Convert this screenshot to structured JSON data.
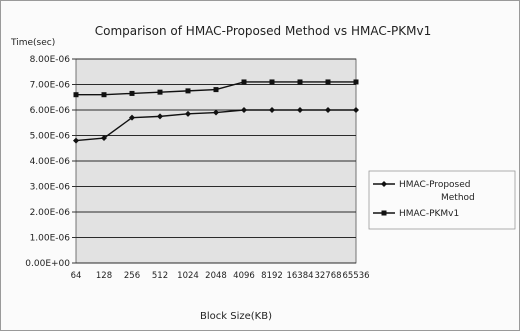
{
  "chart_data": {
    "type": "line",
    "title": "Comparison of HMAC-Proposed Method vs HMAC-PKMv1",
    "ylabel": "Time(sec)",
    "xlabel": "Block Size(KB)",
    "categories": [
      "64",
      "128",
      "256",
      "512",
      "1024",
      "2048",
      "4096",
      "8192",
      "16384",
      "32768",
      "65536"
    ],
    "category_labels": [
      "64",
      "128",
      "256",
      "512",
      "1024",
      "2048",
      "4096",
      "8192",
      "16384",
      "32768",
      "65536"
    ],
    "y_ticks": [
      "0.00E+00",
      "1.00E-06",
      "2.00E-06",
      "3.00E-06",
      "4.00E-06",
      "5.00E-06",
      "6.00E-06",
      "7.00E-06",
      "8.00E-06"
    ],
    "ylim": [
      0,
      8e-06
    ],
    "grid": true,
    "legend_position": "right",
    "series": [
      {
        "name": "HMAC-Proposed Method",
        "marker": "diamond",
        "values": [
          4.8e-06,
          4.9e-06,
          5.7e-06,
          5.75e-06,
          5.85e-06,
          5.9e-06,
          6e-06,
          6e-06,
          6e-06,
          6e-06,
          6e-06
        ]
      },
      {
        "name": "HMAC-PKMv1",
        "marker": "square",
        "values": [
          6.6e-06,
          6.6e-06,
          6.65e-06,
          6.7e-06,
          6.75e-06,
          6.8e-06,
          7.1e-06,
          7.1e-06,
          7.1e-06,
          7.1e-06,
          7.1e-06
        ]
      }
    ],
    "colors": {
      "plot_background": "#e2e2e2",
      "gridline": "#2b2b2b",
      "series_line": "#111111"
    }
  }
}
